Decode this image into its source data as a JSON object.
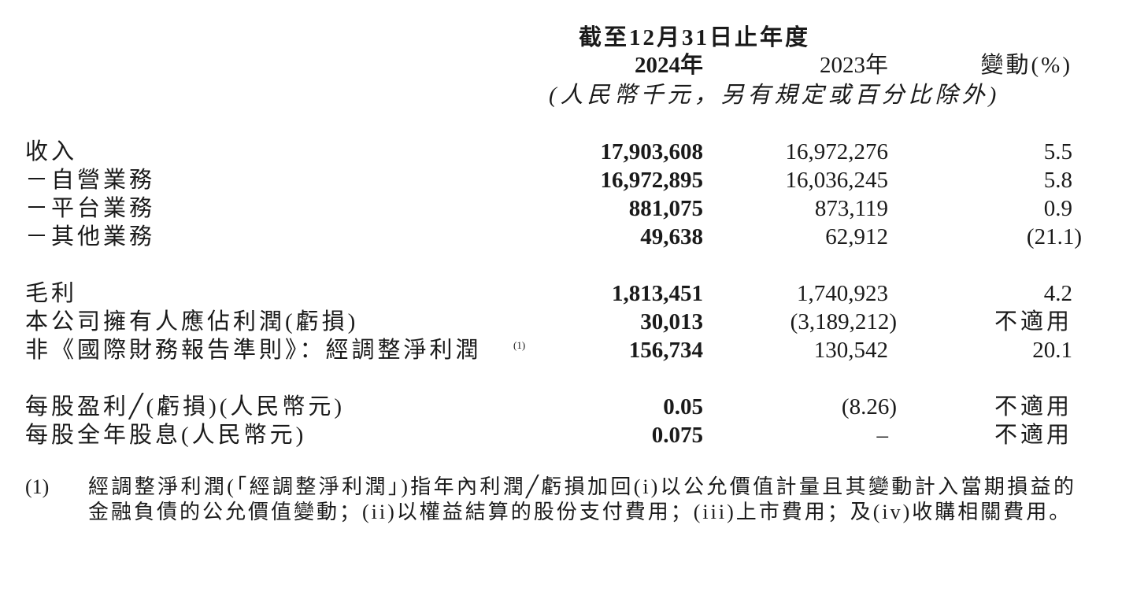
{
  "header": {
    "period": "截至12月31日止年度",
    "col_2024": "2024年",
    "col_2023": "2023年",
    "col_change": "變動(%)",
    "unit_note": "(人民幣千元，另有規定或百分比除外)"
  },
  "rows": [
    {
      "label": "收入",
      "v2024": "17,903,608",
      "v2023": "16,972,276",
      "change": "5.5"
    },
    {
      "label": "－自營業務",
      "v2024": "16,972,895",
      "v2023": "16,036,245",
      "change": "5.8"
    },
    {
      "label": "－平台業務",
      "v2024": "881,075",
      "v2023": "873,119",
      "change": "0.9"
    },
    {
      "label": "－其他業務",
      "v2024": "49,638",
      "v2023": "62,912",
      "change": "(21.1)"
    },
    {
      "label": "毛利",
      "v2024": "1,813,451",
      "v2023": "1,740,923",
      "change": "4.2"
    },
    {
      "label": "本公司擁有人應佔利潤(虧損)",
      "v2024": "30,013",
      "v2023": "(3,189,212)",
      "change": "不適用"
    },
    {
      "label": "非《國際財務報告準則》：經調整淨利潤",
      "label_sup": "(1)",
      "v2024": "156,734",
      "v2023": "130,542",
      "change": "20.1"
    },
    {
      "label": "每股盈利╱(虧損)(人民幣元)",
      "v2024": "0.05",
      "v2023": "(8.26)",
      "change": "不適用"
    },
    {
      "label": "每股全年股息(人民幣元)",
      "v2024": "0.075",
      "v2023": "–",
      "change": "不適用"
    }
  ],
  "footnote": {
    "marker": "(1)",
    "text": "經調整淨利潤(「經調整淨利潤」)指年內利潤╱虧損加回(i)以公允價值計量且其變動計入當期損益的金融負債的公允價值變動；(ii)以權益結算的股份支付費用；(iii)上市費用；及(iv)收購相關費用。"
  }
}
